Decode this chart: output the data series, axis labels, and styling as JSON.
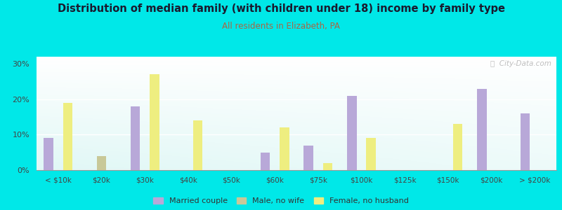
{
  "title": "Distribution of median family (with children under 18) income by family type",
  "subtitle": "All residents in Elizabeth, PA",
  "title_color": "#1a1a2e",
  "subtitle_color": "#aa6644",
  "background_color": "#00e8e8",
  "categories": [
    "< $10k",
    "$20k",
    "$30k",
    "$40k",
    "$50k",
    "$60k",
    "$75k",
    "$100k",
    "$125k",
    "$150k",
    "$200k",
    "> $200k"
  ],
  "married_couple": [
    9,
    0,
    18,
    0,
    0,
    5,
    7,
    21,
    0,
    0,
    23,
    16
  ],
  "male_no_wife": [
    0,
    4,
    0,
    0,
    0,
    0,
    0,
    0,
    0,
    0,
    0,
    0
  ],
  "female_no_husband": [
    19,
    0,
    27,
    14,
    0,
    12,
    2,
    9,
    0,
    13,
    0,
    0
  ],
  "married_color": "#b8a8d8",
  "male_color": "#c8c898",
  "female_color": "#eeee80",
  "ylabel_ticks": [
    "0%",
    "10%",
    "20%",
    "30%"
  ],
  "ytick_vals": [
    0,
    10,
    20,
    30
  ],
  "ylim": [
    0,
    32
  ],
  "bar_width": 0.22,
  "legend_labels": [
    "Married couple",
    "Male, no wife",
    "Female, no husband"
  ],
  "watermark": "ⓘ  City-Data.com"
}
